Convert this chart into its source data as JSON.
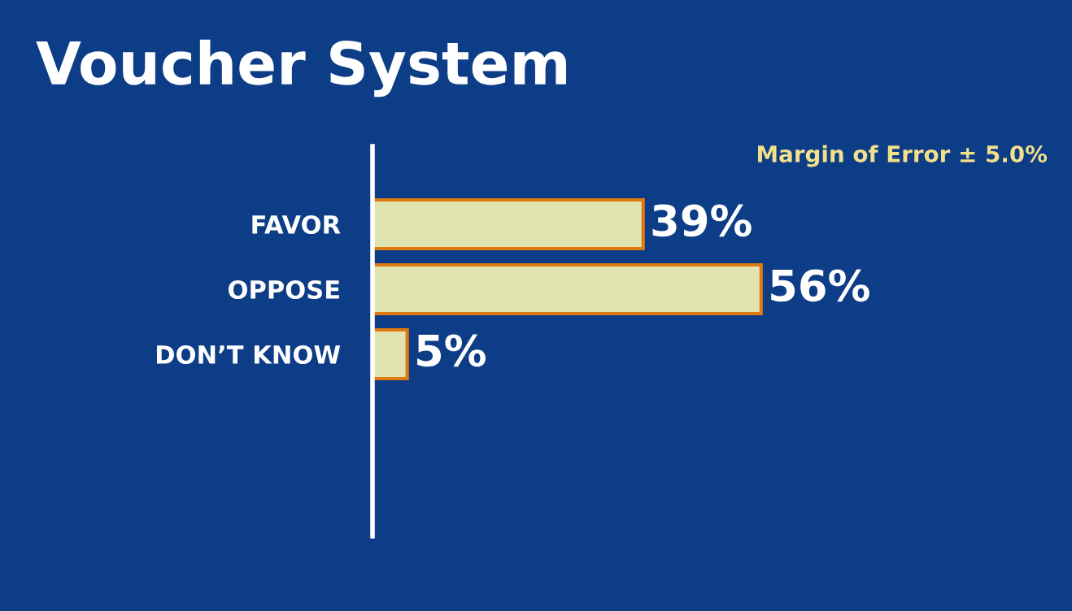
{
  "chart_data": {
    "type": "bar",
    "orientation": "horizontal",
    "title": "Voucher System",
    "categories": [
      "FAVOR",
      "OPPOSE",
      "DON’T KNOW"
    ],
    "values": [
      39,
      56,
      5
    ],
    "value_labels": [
      "39%",
      "56%",
      "5%"
    ],
    "color": "#dfe4b0",
    "annotations": [
      "Margin of Error ± 5.0%"
    ],
    "grid": false,
    "legend": false
  }
}
